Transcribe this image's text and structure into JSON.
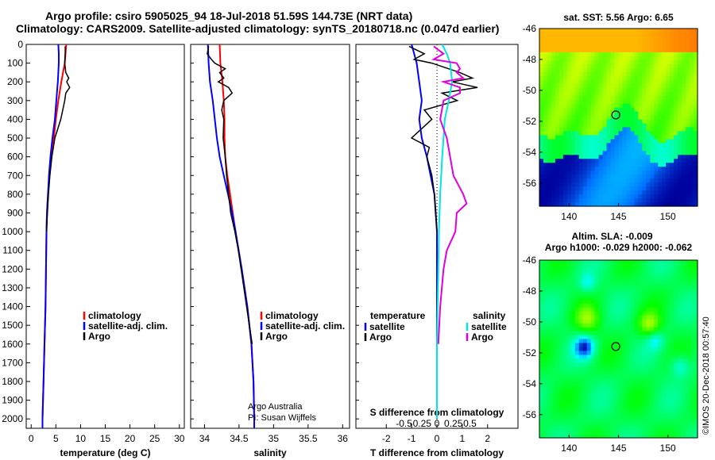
{
  "header": {
    "line1": "Argo profile: csiro 5905025_94 18-Jul-2018 51.59S 144.73E (NRT data)",
    "line2": "Climatology: CARS2009. Satellite-adjusted climatology: synTS_20180718.nc (0.047d earlier)"
  },
  "colors": {
    "climatology": "#ff0000",
    "satellite": "#0000ff",
    "argo": "#000000",
    "sat_salinity": "#00e5e5",
    "argo_salinity": "#e000e0"
  },
  "chart_data": [
    {
      "type": "line",
      "xlabel": "temperature (deg C)",
      "ylabel": "",
      "xlim": [
        -1,
        31
      ],
      "ylim": [
        2050,
        0
      ],
      "x_ticks": [
        0,
        5,
        10,
        15,
        20,
        25,
        30
      ],
      "y_ticks": [
        0,
        100,
        200,
        300,
        400,
        500,
        600,
        700,
        800,
        900,
        1000,
        1100,
        1200,
        1300,
        1400,
        1500,
        1600,
        1700,
        1800,
        1900,
        2000
      ],
      "legend": [
        "climatology",
        "satellite-adj. clim.",
        "Argo"
      ],
      "series": [
        {
          "name": "climatology",
          "depth": [
            0,
            100,
            200,
            300,
            400,
            500,
            600,
            700,
            800,
            900,
            1000,
            1200,
            1400,
            1600,
            1800,
            2000,
            2050
          ],
          "values": [
            7.1,
            6.8,
            6.1,
            5.5,
            5.0,
            4.6,
            4.1,
            3.7,
            3.4,
            3.2,
            3.1,
            3.0,
            2.9,
            2.7,
            2.5,
            2.3,
            2.3
          ]
        },
        {
          "name": "satellite-adj. clim.",
          "depth": [
            0,
            50,
            100,
            200,
            300,
            400,
            500,
            600,
            700,
            800,
            900,
            1000,
            1200,
            1400,
            1600,
            1800,
            2000,
            2050
          ],
          "values": [
            5.5,
            5.6,
            5.6,
            5.4,
            5.1,
            4.8,
            4.3,
            3.9,
            3.6,
            3.4,
            3.2,
            3.1,
            3.0,
            2.9,
            2.7,
            2.5,
            2.3,
            2.3
          ]
        },
        {
          "name": "Argo",
          "depth": [
            10,
            50,
            100,
            150,
            180,
            200,
            230,
            260,
            300,
            350,
            400,
            500,
            600,
            700,
            800,
            900,
            1000
          ],
          "values": [
            6.9,
            6.9,
            6.8,
            7.0,
            7.6,
            7.2,
            7.8,
            7.0,
            6.8,
            6.4,
            6.0,
            4.8,
            4.2,
            3.8,
            3.5,
            3.3,
            3.1
          ]
        }
      ]
    },
    {
      "type": "line",
      "xlabel": "salinity",
      "ylabel": "",
      "xlim": [
        33.8,
        36.1
      ],
      "ylim": [
        2050,
        0
      ],
      "x_ticks": [
        34,
        34.5,
        35,
        35.5,
        36
      ],
      "x_tick_labels": [
        "34",
        "34.5",
        "35",
        "35.5",
        "36"
      ],
      "legend": [
        "climatology",
        "satellite-adj. clim.",
        "Argo"
      ],
      "series": [
        {
          "name": "climatology",
          "depth": [
            0,
            100,
            200,
            300,
            400,
            500,
            600,
            700,
            800,
            900,
            1000,
            1200,
            1400,
            1600,
            1800,
            2000,
            2050
          ],
          "values": [
            34.22,
            34.23,
            34.26,
            34.28,
            34.29,
            34.29,
            34.3,
            34.33,
            34.37,
            34.41,
            34.45,
            34.54,
            34.62,
            34.68,
            34.71,
            34.72,
            34.72
          ]
        },
        {
          "name": "satellite-adj. clim.",
          "depth": [
            0,
            100,
            200,
            300,
            400,
            500,
            600,
            700,
            800,
            900,
            1000,
            1200,
            1400,
            1600,
            1800,
            2000,
            2050
          ],
          "values": [
            34.05,
            34.06,
            34.08,
            34.12,
            34.15,
            34.18,
            34.22,
            34.28,
            34.34,
            34.4,
            34.45,
            34.54,
            34.62,
            34.68,
            34.71,
            34.72,
            34.72
          ]
        },
        {
          "name": "Argo",
          "depth": [
            10,
            50,
            80,
            100,
            130,
            150,
            180,
            200,
            230,
            260,
            300,
            350,
            400,
            500,
            600,
            700,
            800,
            900,
            1000,
            1100,
            1200,
            1300,
            1400,
            1500,
            1600
          ],
          "values": [
            34.06,
            34.04,
            34.1,
            34.15,
            34.3,
            34.22,
            34.28,
            34.2,
            34.35,
            34.4,
            34.28,
            34.25,
            34.28,
            34.27,
            34.3,
            34.32,
            34.35,
            34.38,
            34.44,
            34.49,
            34.53,
            34.57,
            34.61,
            34.65,
            34.69
          ]
        }
      ]
    },
    {
      "type": "line",
      "xlabel": "T difference from climatology",
      "ylabel": "",
      "xlim": [
        -3.2,
        3.2
      ],
      "ylim": [
        2050,
        0
      ],
      "x_ticks": [
        -2,
        -1,
        0,
        1,
        2
      ],
      "top_note": "S difference from climatology",
      "s_ticks": [
        "-0.5",
        "-0.25",
        "0",
        "0.25",
        "0.5"
      ],
      "legend_left_title": "temperature",
      "legend_right_title": "salinity",
      "legend_left": [
        "satellite",
        "Argo"
      ],
      "legend_right": [
        "satellite",
        "Argo"
      ],
      "series": [
        {
          "name": "temperature satellite",
          "depth": [
            0,
            50,
            100,
            200,
            300,
            400,
            500,
            600,
            700,
            800,
            900,
            1000,
            1200,
            1400,
            1600,
            1800,
            2000
          ],
          "values": [
            -1.0,
            -0.9,
            -0.8,
            -0.7,
            -0.6,
            -0.7,
            -0.6,
            -0.4,
            -0.25,
            -0.1,
            -0.05,
            0,
            0,
            0,
            0,
            0,
            0
          ]
        },
        {
          "name": "temperature Argo",
          "depth": [
            10,
            50,
            80,
            100,
            150,
            180,
            200,
            230,
            260,
            300,
            350,
            400,
            500,
            550,
            600,
            700,
            800,
            900,
            1000
          ],
          "values": [
            -1.1,
            -0.5,
            -0.9,
            -0.2,
            0.9,
            1.4,
            0.6,
            1.6,
            0.2,
            0.8,
            -0.5,
            -0.2,
            -1.0,
            -0.3,
            -0.4,
            -0.2,
            -0.1,
            -0.05,
            0
          ]
        },
        {
          "name": "salinity satellite",
          "depth": [
            0,
            50,
            100,
            200,
            300,
            400,
            500,
            600,
            800,
            1000,
            1200,
            1400,
            1600,
            1800,
            2000
          ],
          "values": [
            0.08,
            0.15,
            0.2,
            0.23,
            0.18,
            0.12,
            0.1,
            0.08,
            0.05,
            0.03,
            0.02,
            0.01,
            0,
            0,
            0
          ]
        },
        {
          "name": "salinity Argo",
          "depth": [
            10,
            50,
            80,
            100,
            130,
            150,
            180,
            200,
            230,
            260,
            300,
            400,
            500,
            600,
            700,
            800,
            850,
            900,
            1000,
            1100,
            1200,
            1400,
            1600
          ],
          "values": [
            -0.05,
            0.1,
            -0.05,
            0.3,
            0.35,
            0.3,
            0.4,
            0.1,
            0.35,
            0.35,
            0.1,
            0.05,
            0.15,
            0.2,
            0.25,
            0.4,
            0.45,
            0.3,
            0.28,
            0.15,
            0.1,
            0.05,
            0.02
          ]
        }
      ]
    },
    {
      "type": "heatmap",
      "title": "sat. SST: 5.56  Argo: 6.65",
      "xlim": [
        137,
        153
      ],
      "ylim": [
        -57.5,
        -46
      ],
      "x_ticks": [
        140,
        145,
        150
      ],
      "y_ticks": [
        -46,
        -48,
        -50,
        -52,
        -54,
        -56
      ],
      "marker": {
        "lon": 144.73,
        "lat": -51.59
      }
    },
    {
      "type": "heatmap",
      "title_line1": "Altim. SLA: -0.009",
      "title_line2": "Argo h1000: -0.029 h2000: -0.062",
      "xlim": [
        137,
        153
      ],
      "ylim": [
        -57.5,
        -46
      ],
      "x_ticks": [
        140,
        145,
        150
      ],
      "y_ticks": [
        -46,
        -48,
        -50,
        -52,
        -54,
        -56
      ],
      "marker": {
        "lon": 144.73,
        "lat": -51.59
      }
    }
  ],
  "footer": {
    "credit1": "Argo Australia",
    "credit2": "PI: Susan Wijffels",
    "imos_stamp": "©IMOS 20-Dec-2018 00:57:40"
  }
}
